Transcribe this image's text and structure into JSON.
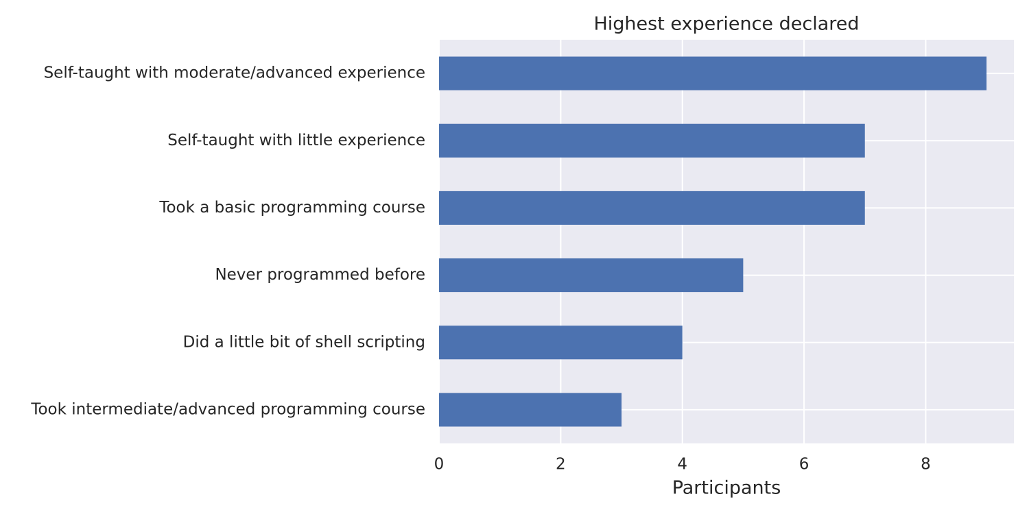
{
  "chart_data": {
    "type": "barh",
    "title": "Highest experience declared",
    "xlabel": "Participants",
    "categories": [
      "Self-taught with moderate/advanced experience",
      "Self-taught with little experience",
      "Took a basic programming course",
      "Never programmed before",
      "Did a little bit of shell scripting",
      "Took intermediate/advanced programming course"
    ],
    "values": [
      9,
      7,
      7,
      5,
      4,
      3
    ],
    "color": "#4c72b0",
    "xlim": [
      0,
      9.45
    ],
    "xticks": [
      0,
      2,
      4,
      6,
      8
    ],
    "grid": true
  }
}
